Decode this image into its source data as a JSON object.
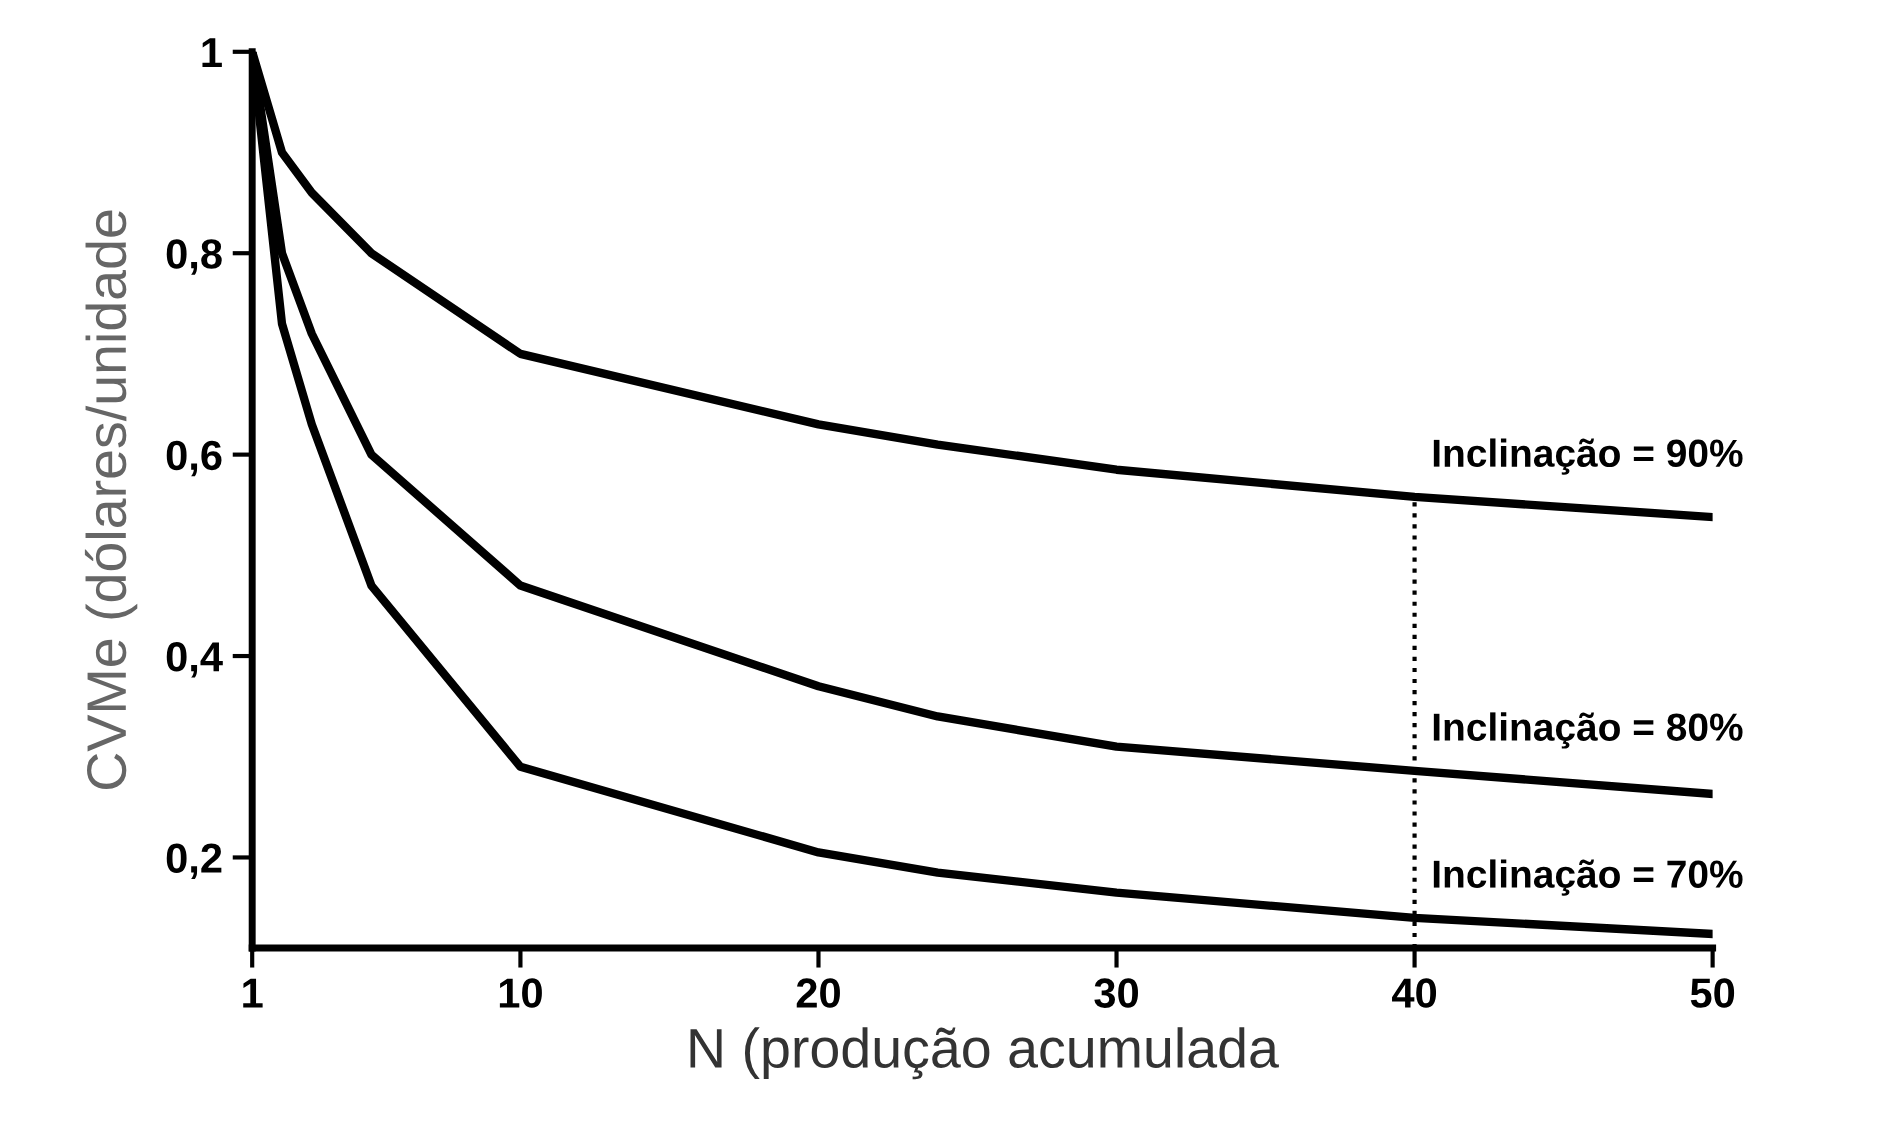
{
  "chart_data": {
    "type": "line",
    "xlabel": "N (produção acumulada",
    "ylabel": "CVMe (dólares/unidade",
    "xlim": [
      1,
      50
    ],
    "ylim": [
      0.11,
      1
    ],
    "xticks": [
      1,
      10,
      20,
      30,
      40,
      50
    ],
    "yticks": [
      {
        "value": 0.2,
        "label": "0,2"
      },
      {
        "value": 0.4,
        "label": "0,4"
      },
      {
        "value": 0.6,
        "label": "0,6"
      },
      {
        "value": 0.8,
        "label": "0,8"
      },
      {
        "value": 1,
        "label": "1"
      }
    ],
    "x": [
      1,
      2,
      3,
      5,
      10,
      20,
      24,
      30,
      40,
      50
    ],
    "series": [
      {
        "name": "Inclinação = 90%",
        "color": "#000000",
        "values": [
          1,
          0.9,
          0.86,
          0.8,
          0.7,
          0.63,
          0.61,
          0.585,
          0.558,
          0.538
        ]
      },
      {
        "name": "Inclinação = 80%",
        "color": "#000000",
        "values": [
          1,
          0.8,
          0.72,
          0.6,
          0.47,
          0.37,
          0.34,
          0.31,
          0.286,
          0.263
        ]
      },
      {
        "name": "Inclinação = 70%",
        "color": "#000000",
        "values": [
          1,
          0.73,
          0.63,
          0.47,
          0.29,
          0.205,
          0.185,
          0.165,
          0.14,
          0.124
        ]
      }
    ],
    "ref_lines": [
      {
        "axis": "x",
        "value": 40,
        "line_style": "dotted",
        "color": "#000000"
      }
    ],
    "grid": false,
    "legend": false
  }
}
